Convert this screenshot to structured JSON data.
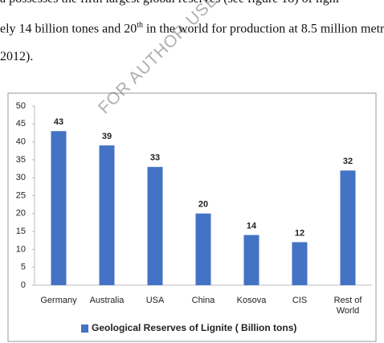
{
  "document_text": {
    "line1": "a possesses the fifth largest global reserves (see figure 18) of ligni",
    "line2_start": "ely 14 billion tones and 20",
    "line2_sup": "th",
    "line2_end": " in the world for production at 8.5 million metr",
    "line3": "2012)."
  },
  "watermark": "FOR AUTHOR USE ONLY",
  "chart_data": {
    "type": "bar",
    "categories": [
      "Germany",
      "Australia",
      "USA",
      "China",
      "Kosova",
      "CIS",
      "Rest of World"
    ],
    "series": [
      {
        "name": "Geological Reserves of Lignite ( Billion tons)",
        "color": "#4472c4",
        "values": [
          43,
          39,
          33,
          20,
          14,
          12,
          32
        ]
      }
    ],
    "ylim": [
      0,
      50
    ],
    "yticks": [
      0,
      5,
      10,
      15,
      20,
      25,
      30,
      35,
      40,
      45,
      50
    ],
    "grid": false,
    "legend": "bottom"
  }
}
